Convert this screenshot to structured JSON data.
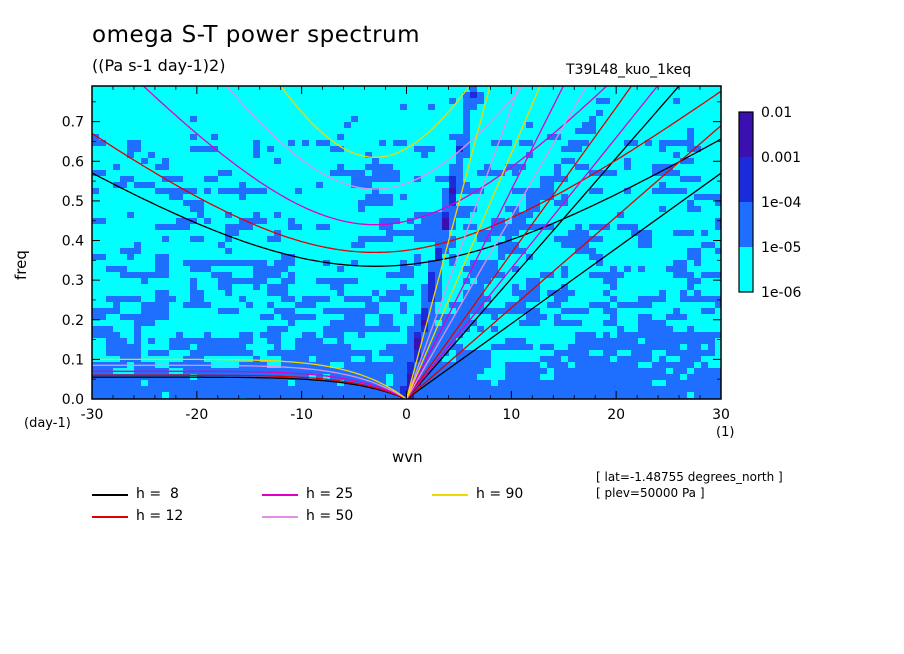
{
  "title": "omega S-T power spectrum",
  "subtitle": "((Pa s-1 day-1)2)",
  "run_label": "T39L48_kuo_1keq",
  "notes": [
    "[ lat=-1.48755 degrees_north ]",
    "[ plev=50000 Pa ]"
  ],
  "chart_data": {
    "type": "heatmap",
    "xlabel": "wvn",
    "ylabel": "freq",
    "x_unit": "(1)",
    "y_unit": "(day-1)",
    "xlim": [
      -30,
      30
    ],
    "ylim": [
      0,
      0.79
    ],
    "x_ticks": [
      -30,
      -20,
      -10,
      0,
      10,
      20,
      30
    ],
    "x_tick_labels": [
      "-30",
      "-20",
      "-10",
      "0",
      "10",
      "20",
      "30"
    ],
    "y_ticks": [
      0.0,
      0.1,
      0.2,
      0.3,
      0.4,
      0.5,
      0.6,
      0.7
    ],
    "y_tick_labels": [
      "0.0",
      "0.1",
      "0.2",
      "0.3",
      "0.4",
      "0.5",
      "0.6",
      "0.7"
    ],
    "colorbar": {
      "levels": [
        "1e-06",
        "1e-05",
        "1e-04",
        "0.001",
        "0.01"
      ],
      "colors": [
        "#00ffff",
        "#1e6fff",
        "#1a2bd9",
        "#3a10b0"
      ]
    },
    "dispersion_curves": [
      {
        "name": "h =  8",
        "h": 8,
        "color": "#000000"
      },
      {
        "name": "h = 12",
        "h": 12,
        "color": "#e00000"
      },
      {
        "name": "h = 25",
        "h": 25,
        "color": "#e000c8"
      },
      {
        "name": "h = 50",
        "h": 50,
        "color": "#e090e8"
      },
      {
        "name": "h = 90",
        "h": 90,
        "color": "#f0d800"
      }
    ],
    "curve_extrema_freq": {
      "h =  8": {
        "ig_min": 0.335,
        "mrg_end": 0.055
      },
      "h = 12": {
        "ig_min": 0.37,
        "mrg_end": 0.06
      },
      "h = 25": {
        "ig_min": 0.44,
        "mrg_end": 0.07
      },
      "h = 50": {
        "ig_min": 0.53,
        "mrg_end": 0.085
      },
      "h = 90": {
        "ig_min": 0.61,
        "mrg_end": 0.1
      }
    },
    "kelvin_slope_freq_per_wvn": {
      "h =  8": 0.019,
      "h = 12": 0.023,
      "h = 25": 0.033,
      "h = 50": 0.046,
      "h = 90": 0.062
    }
  }
}
